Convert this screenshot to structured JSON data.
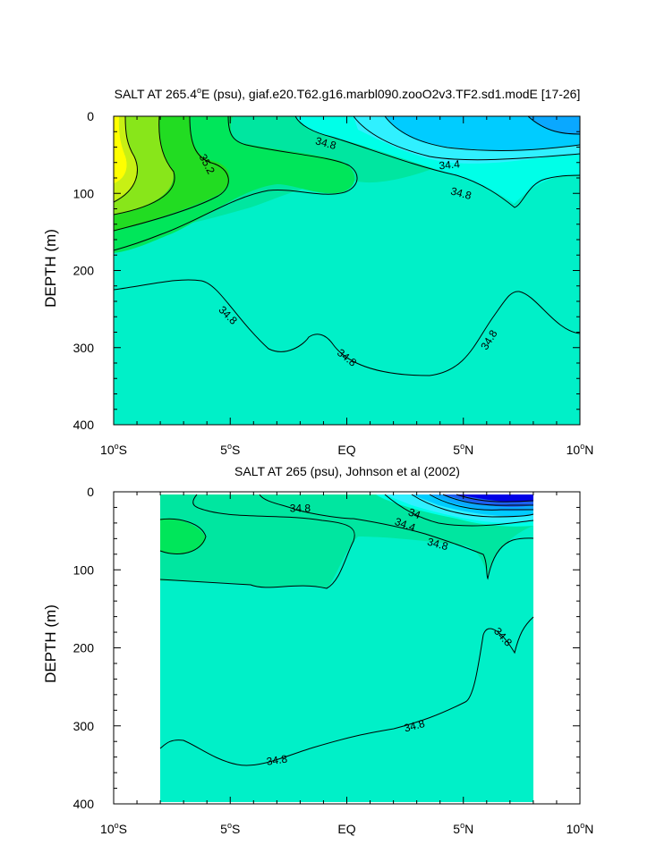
{
  "chart_data": [
    {
      "type": "contour",
      "title": "SALT AT 265.4°E (psu), giaf.e20.T62.g16.marbl090.zooO2v3.TF2.sd1.modE [17-26]",
      "title_parts": {
        "prefix": "SALT AT 265.4",
        "sup": "o",
        "suffix": "E (psu), giaf.e20.T62.g16.marbl090.zooO2v3.TF2.sd1.modE [17-26]"
      },
      "ylabel": "DEPTH (m)",
      "xlim": [
        -10,
        10
      ],
      "ylim": [
        0,
        400
      ],
      "x_ticks": [
        {
          "value": -10,
          "num": "10",
          "deg": "o",
          "hem": "S"
        },
        {
          "value": -5,
          "num": "5",
          "deg": "o",
          "hem": "S"
        },
        {
          "value": 0,
          "num": "EQ",
          "deg": "",
          "hem": ""
        },
        {
          "value": 5,
          "num": "5",
          "deg": "o",
          "hem": "N"
        },
        {
          "value": 10,
          "num": "10",
          "deg": "o",
          "hem": "N"
        }
      ],
      "y_ticks": [
        "0",
        "100",
        "200",
        "300",
        "400"
      ],
      "y_tick_values": [
        0,
        100,
        200,
        300,
        400
      ],
      "contour_labels": [
        {
          "text": "34.8",
          "lon": -0.9,
          "depth": 35,
          "angle": 15
        },
        {
          "text": "35.2",
          "lon": -6.0,
          "depth": 62,
          "angle": 62
        },
        {
          "text": "34.4",
          "lon": 4.4,
          "depth": 63,
          "angle": -5
        },
        {
          "text": "34.8",
          "lon": 4.9,
          "depth": 100,
          "angle": 15
        },
        {
          "text": "34.8",
          "lon": -5.1,
          "depth": 258,
          "angle": 45
        },
        {
          "text": "34.8",
          "lon": 0.0,
          "depth": 313,
          "angle": 38
        },
        {
          "text": "34.8",
          "lon": 6.1,
          "depth": 290,
          "angle": -58
        }
      ]
    },
    {
      "type": "contour",
      "title": "SALT AT 265 (psu), Johnson et al (2002)",
      "title_parts": {
        "prefix": "SALT AT 265 (psu), Johnson et al (2002)",
        "sup": "",
        "suffix": ""
      },
      "ylabel": "DEPTH (m)",
      "xlim": [
        -10,
        10
      ],
      "ylim": [
        0,
        400
      ],
      "data_lon_range": [
        -8,
        8
      ],
      "x_ticks": [
        {
          "value": -10,
          "num": "10",
          "deg": "o",
          "hem": "S"
        },
        {
          "value": -5,
          "num": "5",
          "deg": "o",
          "hem": "S"
        },
        {
          "value": 0,
          "num": "EQ",
          "deg": "",
          "hem": ""
        },
        {
          "value": 5,
          "num": "5",
          "deg": "o",
          "hem": "N"
        },
        {
          "value": 10,
          "num": "10",
          "deg": "o",
          "hem": "N"
        }
      ],
      "y_ticks": [
        "0",
        "100",
        "200",
        "300",
        "400"
      ],
      "y_tick_values": [
        0,
        100,
        200,
        300,
        400
      ],
      "contour_labels": [
        {
          "text": "34.8",
          "lon": -2.0,
          "depth": 21,
          "angle": 0
        },
        {
          "text": "34",
          "lon": 2.9,
          "depth": 28,
          "angle": 20
        },
        {
          "text": "34.4",
          "lon": 2.5,
          "depth": 42,
          "angle": 20
        },
        {
          "text": "34.8",
          "lon": 3.9,
          "depth": 67,
          "angle": 15
        },
        {
          "text": "34.8",
          "lon": 6.7,
          "depth": 186,
          "angle": 48
        },
        {
          "text": "34.8",
          "lon": 2.9,
          "depth": 300,
          "angle": -15
        },
        {
          "text": "34.8",
          "lon": -3.0,
          "depth": 344,
          "angle": -8
        }
      ]
    }
  ]
}
